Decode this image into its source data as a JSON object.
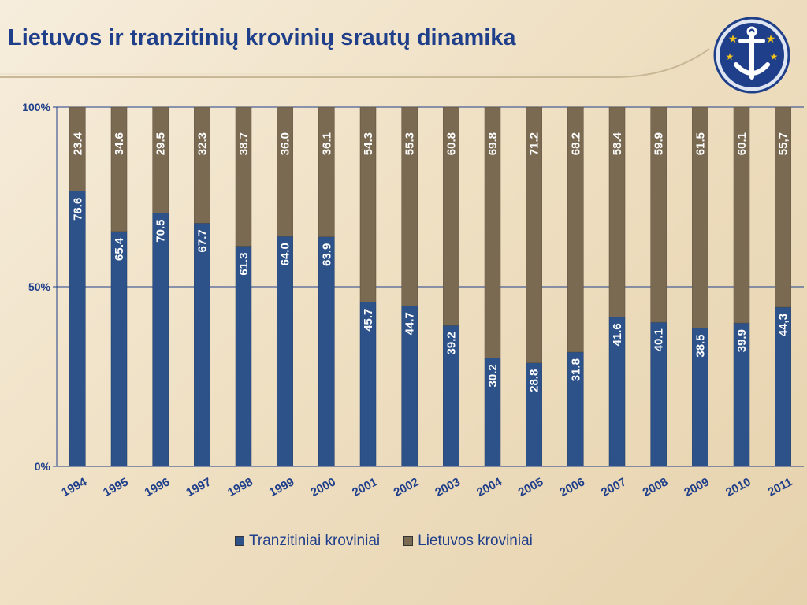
{
  "title": "Lietuvos ir tranzitinių krovinių srautų dinamika",
  "logo": {
    "icon": "anchor-with-stars-logo"
  },
  "colors": {
    "tranzit": "#2c5289",
    "lietuvos": "#7a6a52",
    "title": "#1f3f8a",
    "axis_text": "#1f3f8a",
    "label_text": "#ffffff"
  },
  "chart_data": {
    "type": "bar",
    "stacked": "100%",
    "categories": [
      "1994",
      "1995",
      "1996",
      "1997",
      "1998",
      "1999",
      "2000",
      "2001",
      "2002",
      "2003",
      "2004",
      "2005",
      "2006",
      "2007",
      "2008",
      "2009",
      "2010",
      "2011"
    ],
    "series": [
      {
        "name": "Tranzitiniai kroviniai",
        "values": [
          76.6,
          65.4,
          70.5,
          67.7,
          61.3,
          64.0,
          63.9,
          45.7,
          44.7,
          39.2,
          30.2,
          28.8,
          31.8,
          41.6,
          40.1,
          38.5,
          39.9,
          44.3
        ],
        "labels": [
          "76.6",
          "65.4",
          "70.5",
          "67.7",
          "61.3",
          "64.0",
          "63.9",
          "45.7",
          "44.7",
          "39.2",
          "30.2",
          "28.8",
          "31.8",
          "41.6",
          "40.1",
          "38.5",
          "39.9",
          "44,3"
        ]
      },
      {
        "name": "Lietuvos kroviniai",
        "values": [
          23.4,
          34.6,
          29.5,
          32.3,
          38.7,
          36.0,
          36.1,
          54.3,
          55.3,
          60.8,
          69.8,
          71.2,
          68.2,
          58.4,
          59.9,
          61.5,
          60.1,
          55.7
        ],
        "labels": [
          "23.4",
          "34.6",
          "29.5",
          "32.3",
          "38.7",
          "36.0",
          "36.1",
          "54.3",
          "55.3",
          "60.8",
          "69.8",
          "71.2",
          "68.2",
          "58.4",
          "59.9",
          "61.5",
          "60.1",
          "55,7"
        ]
      }
    ],
    "yticks": [
      "0%",
      "50%",
      "100%"
    ],
    "ylim": [
      0,
      100
    ],
    "grid": true,
    "legend_position": "bottom"
  }
}
